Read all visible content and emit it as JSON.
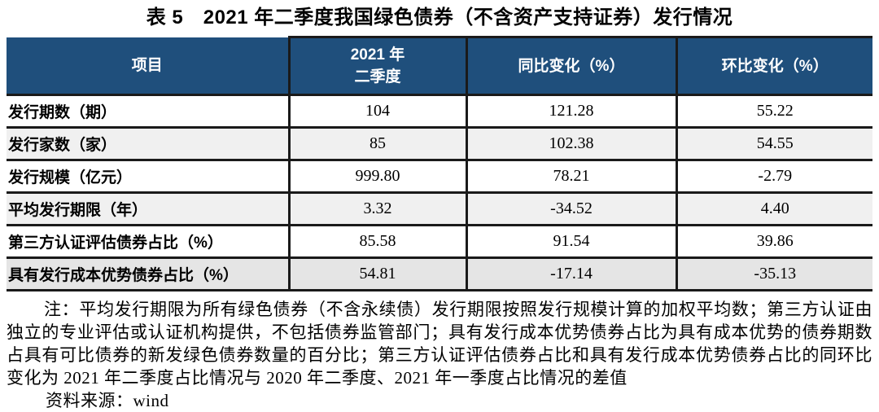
{
  "title": "表 5　2021 年二季度我国绿色债券（不含资产支持证券）发行情况",
  "table": {
    "header": {
      "item": "项目",
      "period_line1": "2021 年",
      "period_line2": "二季度",
      "yoy": "同比变化（%）",
      "qoq": "环比变化（%）"
    },
    "rows": [
      {
        "label": "发行期数（期）",
        "q2_2021": "104",
        "yoy": "121.28",
        "qoq": "55.22"
      },
      {
        "label": "发行家数（家）",
        "q2_2021": "85",
        "yoy": "102.38",
        "qoq": "54.55"
      },
      {
        "label": "发行规模（亿元）",
        "q2_2021": "999.80",
        "yoy": "78.21",
        "qoq": "-2.79"
      },
      {
        "label": "平均发行期限（年）",
        "q2_2021": "3.32",
        "yoy": "-34.52",
        "qoq": "4.40"
      },
      {
        "label": "第三方认证评估债券占比（%）",
        "q2_2021": "85.58",
        "yoy": "91.54",
        "qoq": "39.86"
      },
      {
        "label": "具有发行成本优势债券占比（%）",
        "q2_2021": "54.81",
        "yoy": "-17.14",
        "qoq": "-35.13"
      }
    ]
  },
  "chart_data": {
    "type": "table",
    "title": "表 5　2021 年二季度我国绿色债券（不含资产支持证券）发行情况",
    "columns": [
      "项目",
      "2021 年二季度",
      "同比变化（%）",
      "环比变化（%）"
    ],
    "rows": [
      [
        "发行期数（期）",
        104,
        121.28,
        55.22
      ],
      [
        "发行家数（家）",
        85,
        102.38,
        54.55
      ],
      [
        "发行规模（亿元）",
        999.8,
        78.21,
        -2.79
      ],
      [
        "平均发行期限（年）",
        3.32,
        -34.52,
        4.4
      ],
      [
        "第三方认证评估债券占比（%）",
        85.58,
        91.54,
        39.86
      ],
      [
        "具有发行成本优势债券占比（%）",
        54.81,
        -17.14,
        -35.13
      ]
    ]
  },
  "notes": {
    "note": "注：平均发行期限为所有绿色债券（不含永续债）发行期限按照发行规模计算的加权平均数；第三方认证由独立的专业评估或认证机构提供，不包括债券监管部门；具有发行成本优势债券占比为具有成本优势的债券期数占具有可比债券的新发绿色债券数量的百分比；第三方认证评估债券占比和具有发行成本优势债券占比的同环比变化为 2021 年二季度占比情况与 2020 年二季度、2021 年一季度占比情况的差值",
    "source": "资料来源：wind"
  },
  "colors": {
    "header_bg": "#1F4F7C",
    "header_text": "#FFFFFF",
    "row_shaded_bg": "#F0F0F0",
    "row_last_bg": "#E5E5E5",
    "border": "#1A1A1A"
  }
}
